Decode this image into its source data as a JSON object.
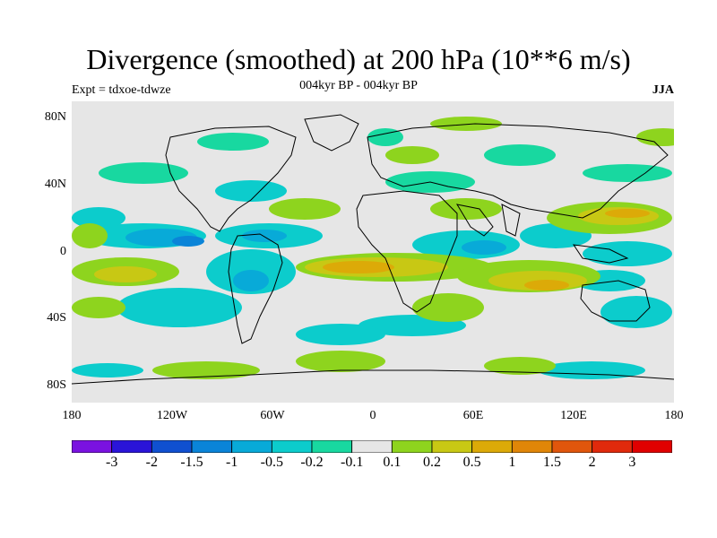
{
  "header": {
    "title": "Divergence (smoothed) at 200 hPa (10**6 m/s)",
    "subtitle": "004kyr BP - 004kyr BP",
    "left_string": "Expt = tdxoe-tdwze",
    "right_string": "JJA"
  },
  "axes": {
    "lat_ticks": [
      "80N",
      "40N",
      "0",
      "40S",
      "80S"
    ],
    "lon_ticks": [
      "180",
      "120W",
      "60W",
      "0",
      "60E",
      "120E",
      "180"
    ]
  },
  "colorbar": {
    "labels": [
      "-3",
      "-2",
      "-1.5",
      "-1",
      "-0.5",
      "-0.2",
      "-0.1",
      "0.1",
      "0.2",
      "0.5",
      "1",
      "1.5",
      "2",
      "3"
    ],
    "colors": [
      "#7a12e0",
      "#2a14d8",
      "#1050d0",
      "#0a84d8",
      "#08aad8",
      "#0ccccc",
      "#18d8a0",
      "#e6e6e6",
      "#8ed41e",
      "#c8c814",
      "#dcaa08",
      "#e08608",
      "#e0560c",
      "#e02a0c",
      "#e00000"
    ]
  },
  "map_colors": {
    "background": "#e6e6e6",
    "land_outline": "#000000"
  }
}
